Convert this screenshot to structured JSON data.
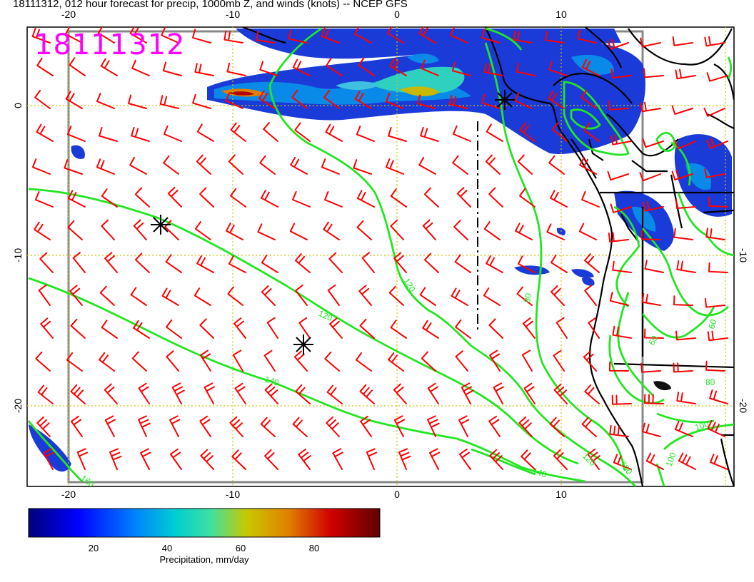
{
  "title": "18111312, 012 hour forecast for precip, 1000mb Z, and winds (knots) -- NCEP GFS",
  "stamp": "18111312",
  "map": {
    "lon_range": [
      -22.7,
      20.0
    ],
    "lat_range": [
      -25.0,
      5.0
    ],
    "lon_ticks": [
      "-20",
      "-10",
      "0",
      "10"
    ],
    "lat_ticks_left": [
      "0",
      "-10",
      "-20"
    ],
    "lat_ticks_right": [
      "-10",
      "-20"
    ],
    "contour_labels": [
      "120",
      "120",
      "140",
      "140",
      "120",
      "100",
      "80",
      "60",
      "60",
      "80",
      "100",
      "100",
      "160"
    ],
    "grid_color": "#d4c400",
    "contour_color": "#22e622",
    "barb_color": "#ff0000"
  },
  "colorbar": {
    "label": "Precipitation, mm/day",
    "ticks": [
      "20",
      "40",
      "60",
      "80"
    ],
    "colors": [
      "#00007a",
      "#0000ff",
      "#0080ff",
      "#00d0d0",
      "#40e0a0",
      "#c8c800",
      "#e08000",
      "#d00000",
      "#600000"
    ]
  }
}
